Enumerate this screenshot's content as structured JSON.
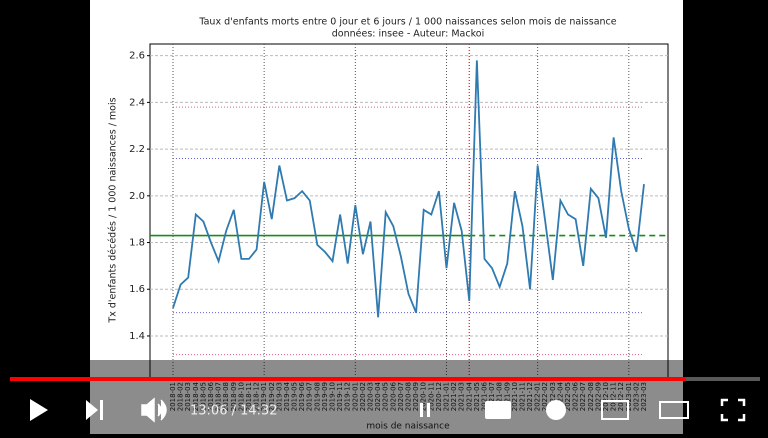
{
  "chart_data": {
    "type": "line",
    "title": "Taux d'enfants morts entre 0 jour et 6 jours / 1 000 naissances selon mois de naissance",
    "subtitle": "données: insee - Auteur: Mackoi",
    "x_label": "mois de naissance",
    "y_label": "Tx d'enfants décédés / 1 000 naissances / mois",
    "categories": [
      "2018-01",
      "2018-02",
      "2018-03",
      "2018-04",
      "2018-05",
      "2018-06",
      "2018-07",
      "2018-08",
      "2018-09",
      "2018-10",
      "2018-11",
      "2018-12",
      "2019-01",
      "2019-02",
      "2019-03",
      "2019-04",
      "2019-05",
      "2019-06",
      "2019-07",
      "2019-08",
      "2019-09",
      "2019-10",
      "2019-11",
      "2019-12",
      "2020-01",
      "2020-02",
      "2020-03",
      "2020-04",
      "2020-05",
      "2020-06",
      "2020-07",
      "2020-08",
      "2020-09",
      "2020-10",
      "2020-11",
      "2020-12",
      "2021-01",
      "2021-02",
      "2021-03",
      "2021-04",
      "2021-05",
      "2021-06",
      "2021-07",
      "2021-08",
      "2021-09",
      "2021-10",
      "2021-11",
      "2021-12",
      "2022-01",
      "2022-02",
      "2022-03",
      "2022-04",
      "2022-05",
      "2022-06",
      "2022-07",
      "2022-08",
      "2022-09",
      "2022-10",
      "2022-11",
      "2022-12",
      "2023-01",
      "2023-02",
      "2023-03"
    ],
    "series": [
      {
        "name": "taux",
        "color": "#2f7ab0",
        "values": [
          1.52,
          1.62,
          1.65,
          1.92,
          1.89,
          1.8,
          1.72,
          1.85,
          1.94,
          1.73,
          1.73,
          1.77,
          2.06,
          1.9,
          2.13,
          1.98,
          1.99,
          2.02,
          1.98,
          1.79,
          1.76,
          1.72,
          1.92,
          1.71,
          1.96,
          1.75,
          1.89,
          1.48,
          1.93,
          1.87,
          1.74,
          1.58,
          1.5,
          1.94,
          1.92,
          2.02,
          1.69,
          1.97,
          1.85,
          1.55,
          2.58,
          1.73,
          1.69,
          1.61,
          1.71,
          2.02,
          1.87,
          1.6,
          2.13,
          1.89,
          1.64,
          1.98,
          1.92,
          1.9,
          1.7,
          2.03,
          1.99,
          1.82,
          2.25,
          2.02,
          1.86,
          1.76,
          2.05
        ]
      }
    ],
    "mean": {
      "value": 1.83,
      "color": "#1a8a1a"
    },
    "bands": [
      {
        "value": 2.38,
        "color": "#e06080"
      },
      {
        "value": 2.16,
        "color": "#6060e0"
      },
      {
        "value": 1.5,
        "color": "#6060e0"
      },
      {
        "value": 1.32,
        "color": "#e06080"
      }
    ],
    "vline": {
      "x": "2021-04",
      "color": "#e03030"
    },
    "ylim": [
      1.22,
      2.65
    ],
    "yticks": [
      1.4,
      1.6,
      1.8,
      {
        "value": 2.0,
        "label": "2.0"
      },
      2.2,
      2.4,
      2.6
    ],
    "grid": true
  },
  "player": {
    "time": "13:06 / 14:32"
  }
}
